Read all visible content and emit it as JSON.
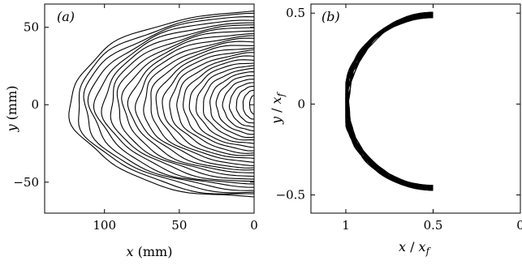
{
  "chart_data": [
    {
      "type": "line",
      "panel_label": "(a)",
      "xlabel": {
        "symbol": "x",
        "unit": "(mm)"
      },
      "ylabel": {
        "symbol": "y",
        "unit": "(mm)"
      },
      "xlim": [
        140,
        0
      ],
      "ylim": [
        -70,
        65
      ],
      "xticks": [
        {
          "value": 100,
          "label": "100"
        },
        {
          "value": 50,
          "label": "50"
        },
        {
          "value": 0,
          "label": "0"
        }
      ],
      "yticks": [
        {
          "value": 50,
          "label": "50"
        },
        {
          "value": 0,
          "label": "0"
        },
        {
          "value": -50,
          "label": "−50"
        }
      ],
      "grid": false,
      "contours": {
        "count": 28,
        "nose_start": 3,
        "nose_end": 123,
        "half_width_start": 6,
        "half_width_end": 60,
        "tail_x": 0,
        "line_color": "#000000"
      }
    },
    {
      "type": "line",
      "panel_label": "(b)",
      "xlabel": {
        "symbol": "x",
        "sep": " / ",
        "sym2": "x",
        "sub": "f"
      },
      "ylabel": {
        "symbol": "y",
        "sep": " / ",
        "sym2": "x",
        "sub": "f"
      },
      "xlim": [
        1.2,
        0
      ],
      "ylim": [
        -0.6,
        0.55
      ],
      "xticks": [
        {
          "value": 1,
          "label": "1"
        },
        {
          "value": 0.5,
          "label": "0.5"
        },
        {
          "value": 0,
          "label": "0"
        }
      ],
      "yticks": [
        {
          "value": 0.5,
          "label": "0.5"
        },
        {
          "value": 0,
          "label": "0"
        },
        {
          "value": -0.5,
          "label": "−0.5"
        }
      ],
      "grid": false,
      "normalized_curves": {
        "count": 24,
        "nose_x": 1.0,
        "upper_half_width": 0.5,
        "lower_half_width": 0.47,
        "line_color": "#000000"
      }
    }
  ]
}
